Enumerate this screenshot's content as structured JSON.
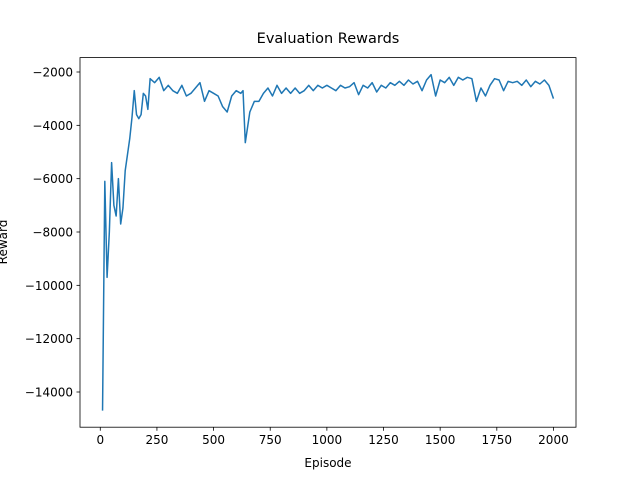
{
  "chart_data": {
    "type": "line",
    "title": "Evaluation Rewards",
    "x_label": "Episode",
    "y_label": "Reward",
    "x": [
      10,
      20,
      30,
      40,
      50,
      60,
      70,
      80,
      90,
      100,
      110,
      120,
      130,
      140,
      150,
      160,
      170,
      180,
      190,
      200,
      210,
      220,
      240,
      260,
      280,
      300,
      320,
      340,
      360,
      380,
      400,
      420,
      440,
      460,
      480,
      500,
      520,
      540,
      560,
      580,
      600,
      620,
      630,
      640,
      660,
      680,
      700,
      720,
      740,
      760,
      780,
      800,
      820,
      840,
      860,
      880,
      900,
      920,
      940,
      960,
      980,
      1000,
      1020,
      1040,
      1060,
      1080,
      1100,
      1120,
      1140,
      1160,
      1180,
      1200,
      1220,
      1240,
      1260,
      1280,
      1300,
      1320,
      1340,
      1360,
      1380,
      1400,
      1420,
      1440,
      1460,
      1480,
      1500,
      1520,
      1540,
      1560,
      1580,
      1600,
      1620,
      1640,
      1660,
      1680,
      1700,
      1720,
      1740,
      1760,
      1780,
      1800,
      1820,
      1840,
      1860,
      1880,
      1900,
      1920,
      1940,
      1960,
      1980,
      2000
    ],
    "series": [
      {
        "name": "Reward",
        "color": "#1f77b4",
        "values": [
          -14700,
          -6100,
          -9700,
          -8000,
          -5400,
          -7000,
          -7400,
          -6000,
          -7700,
          -7100,
          -5700,
          -5100,
          -4500,
          -3700,
          -2700,
          -3600,
          -3750,
          -3600,
          -2800,
          -2900,
          -3400,
          -2250,
          -2400,
          -2200,
          -2700,
          -2500,
          -2700,
          -2800,
          -2500,
          -2900,
          -2800,
          -2600,
          -2400,
          -3100,
          -2700,
          -2800,
          -2900,
          -3300,
          -3500,
          -2900,
          -2700,
          -2800,
          -2700,
          -4650,
          -3500,
          -3100,
          -3100,
          -2800,
          -2600,
          -2900,
          -2500,
          -2800,
          -2600,
          -2800,
          -2600,
          -2800,
          -2700,
          -2500,
          -2700,
          -2500,
          -2600,
          -2500,
          -2600,
          -2700,
          -2500,
          -2600,
          -2550,
          -2400,
          -2850,
          -2500,
          -2600,
          -2400,
          -2750,
          -2500,
          -2600,
          -2400,
          -2500,
          -2350,
          -2500,
          -2300,
          -2450,
          -2350,
          -2700,
          -2300,
          -2100,
          -2900,
          -2300,
          -2400,
          -2200,
          -2500,
          -2200,
          -2300,
          -2200,
          -2250,
          -3100,
          -2600,
          -2900,
          -2500,
          -2250,
          -2300,
          -2700,
          -2350,
          -2400,
          -2350,
          -2500,
          -2300,
          -2550,
          -2350,
          -2450,
          -2300,
          -2500,
          -3000
        ]
      }
    ],
    "xlim": [
      -89.5,
      2099.5
    ],
    "xticks": [
      0,
      250,
      500,
      750,
      1000,
      1250,
      1500,
      1750,
      2000
    ],
    "ylim": [
      -15320,
      -1460
    ],
    "yticks": [
      {
        "value": -14000,
        "label": "−14000"
      },
      {
        "value": -12000,
        "label": "−12000"
      },
      {
        "value": -10000,
        "label": "−10000"
      },
      {
        "value": -8000,
        "label": "−8000"
      },
      {
        "value": -6000,
        "label": "−6000"
      },
      {
        "value": -4000,
        "label": "−4000"
      },
      {
        "value": -2000,
        "label": "−2000"
      }
    ],
    "grid": false
  }
}
